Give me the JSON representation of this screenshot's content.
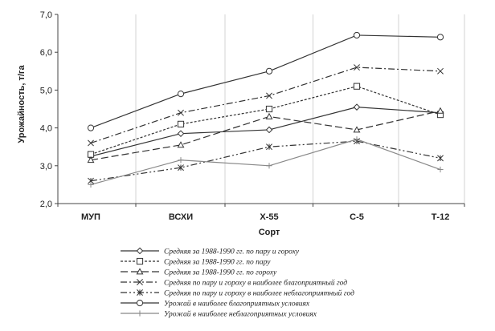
{
  "chart_data": {
    "type": "line",
    "title": "",
    "xlabel": "Сорт",
    "ylabel": "Урожайность, т/га",
    "categories": [
      "МУП",
      "ВСХИ",
      "Х-55",
      "С-5",
      "Т-12"
    ],
    "ylim": [
      2.0,
      7.0
    ],
    "yticks": [
      "2,0",
      "3,0",
      "4,0",
      "5,0",
      "6,0",
      "7,0"
    ],
    "grid": "vertical",
    "legend_position": "bottom",
    "series": [
      {
        "name": "Средняя за 1988-1990 гг. по пару и гороху",
        "values": [
          3.25,
          3.85,
          3.95,
          4.55,
          4.4
        ],
        "color": "#333333",
        "dash": "solid",
        "marker": "diamond"
      },
      {
        "name": "Средняя за 1988-1990 гг. по пару",
        "values": [
          3.3,
          4.1,
          4.5,
          5.1,
          4.35
        ],
        "color": "#333333",
        "dash": "short-dash",
        "marker": "square"
      },
      {
        "name": "Средняя за 1988-1990 гг. по гороху",
        "values": [
          3.15,
          3.55,
          4.3,
          3.95,
          4.45
        ],
        "color": "#333333",
        "dash": "long-dash",
        "marker": "triangle"
      },
      {
        "name": "Средняя по пару и гороху в наиболее благоприятный год",
        "values": [
          3.6,
          4.4,
          4.85,
          5.6,
          5.5
        ],
        "color": "#333333",
        "dash": "dash-dot",
        "marker": "x"
      },
      {
        "name": "Средняя по пару и гороху в наиболее неблагоприятный год",
        "values": [
          2.6,
          2.95,
          3.5,
          3.65,
          3.2
        ],
        "color": "#333333",
        "dash": "dash-dot-dot",
        "marker": "asterisk"
      },
      {
        "name": "Урожай в наиболее благоприятных условиях",
        "values": [
          4.0,
          4.9,
          5.5,
          6.45,
          6.4
        ],
        "color": "#333333",
        "dash": "solid",
        "marker": "circle"
      },
      {
        "name": "Урожай в наиболее неблагоприятных условиях",
        "values": [
          2.5,
          3.15,
          3.0,
          3.7,
          2.9
        ],
        "color": "#888888",
        "dash": "solid",
        "marker": "plus"
      }
    ]
  }
}
